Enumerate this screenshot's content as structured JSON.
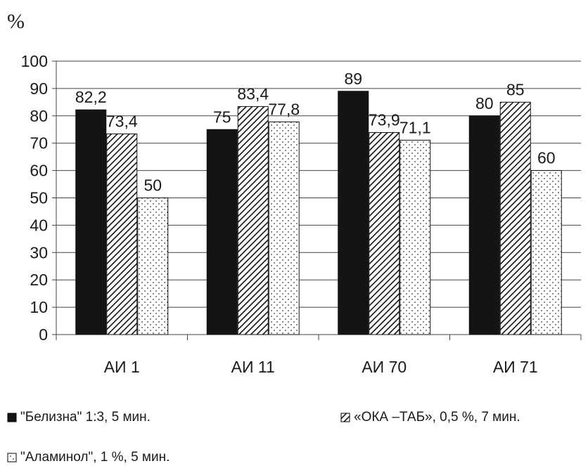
{
  "chart_data": {
    "type": "bar",
    "ylabel": "%",
    "categories": [
      "АИ 1",
      "АИ 11",
      "АИ 70",
      "АИ 71"
    ],
    "series": [
      {
        "name": "\"Белизна\" 1:3, 5 мин.",
        "values": [
          82.2,
          75,
          89,
          80
        ],
        "labels": [
          "82,2",
          "75",
          "89",
          "80"
        ]
      },
      {
        "name": "«ОКА –ТАБ», 0,5 %, 7 мин.",
        "values": [
          73.4,
          83.4,
          73.9,
          85
        ],
        "labels": [
          "73,4",
          "83,4",
          "73,9",
          "85"
        ]
      },
      {
        "name": "\"Аламинол\", 1 %, 5 мин.",
        "values": [
          50,
          77.8,
          71.1,
          60
        ],
        "labels": [
          "50",
          "77,8",
          "71,1",
          "60"
        ]
      }
    ],
    "ylim": [
      0,
      100
    ],
    "yticks": [
      "0",
      "10",
      "20",
      "30",
      "40",
      "50",
      "60",
      "70",
      "80",
      "90",
      "100"
    ],
    "grid": true,
    "legend_position": "bottom",
    "series_fills": [
      "solid-black",
      "diagonal-hatch",
      "dots"
    ]
  }
}
